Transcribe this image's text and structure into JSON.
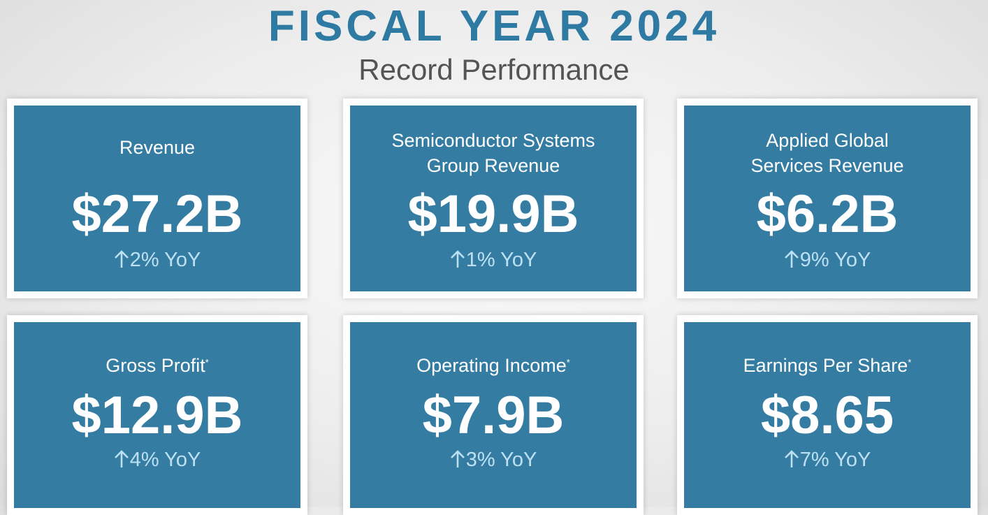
{
  "header": {
    "title": "FISCAL YEAR 2024",
    "subtitle": "Record Performance"
  },
  "cards": [
    {
      "label_line1": "Revenue",
      "label_line2": "",
      "footnote": "",
      "value": "$27.2B",
      "change": "2% YoY"
    },
    {
      "label_line1": "Semiconductor Systems",
      "label_line2": "Group Revenue",
      "footnote": "",
      "value": "$19.9B",
      "change": "1% YoY"
    },
    {
      "label_line1": "Applied Global",
      "label_line2": "Services Revenue",
      "footnote": "",
      "value": "$6.2B",
      "change": "9% YoY"
    },
    {
      "label_line1": "Gross Profit",
      "label_line2": "",
      "footnote": "*",
      "value": "$12.9B",
      "change": "4% YoY"
    },
    {
      "label_line1": "Operating Income",
      "label_line2": "",
      "footnote": "*",
      "value": "$7.9B",
      "change": "3% YoY"
    },
    {
      "label_line1": "Earnings Per Share",
      "label_line2": "",
      "footnote": "*",
      "value": "$8.65",
      "change": "7% YoY"
    }
  ],
  "colors": {
    "title": "#2e7aa3",
    "card_background": "#347ca2",
    "card_border": "#ffffff",
    "change_text": "#bde0f2",
    "subtitle": "#545454"
  },
  "icons": {
    "change_indicator": "arrow-up-icon"
  }
}
